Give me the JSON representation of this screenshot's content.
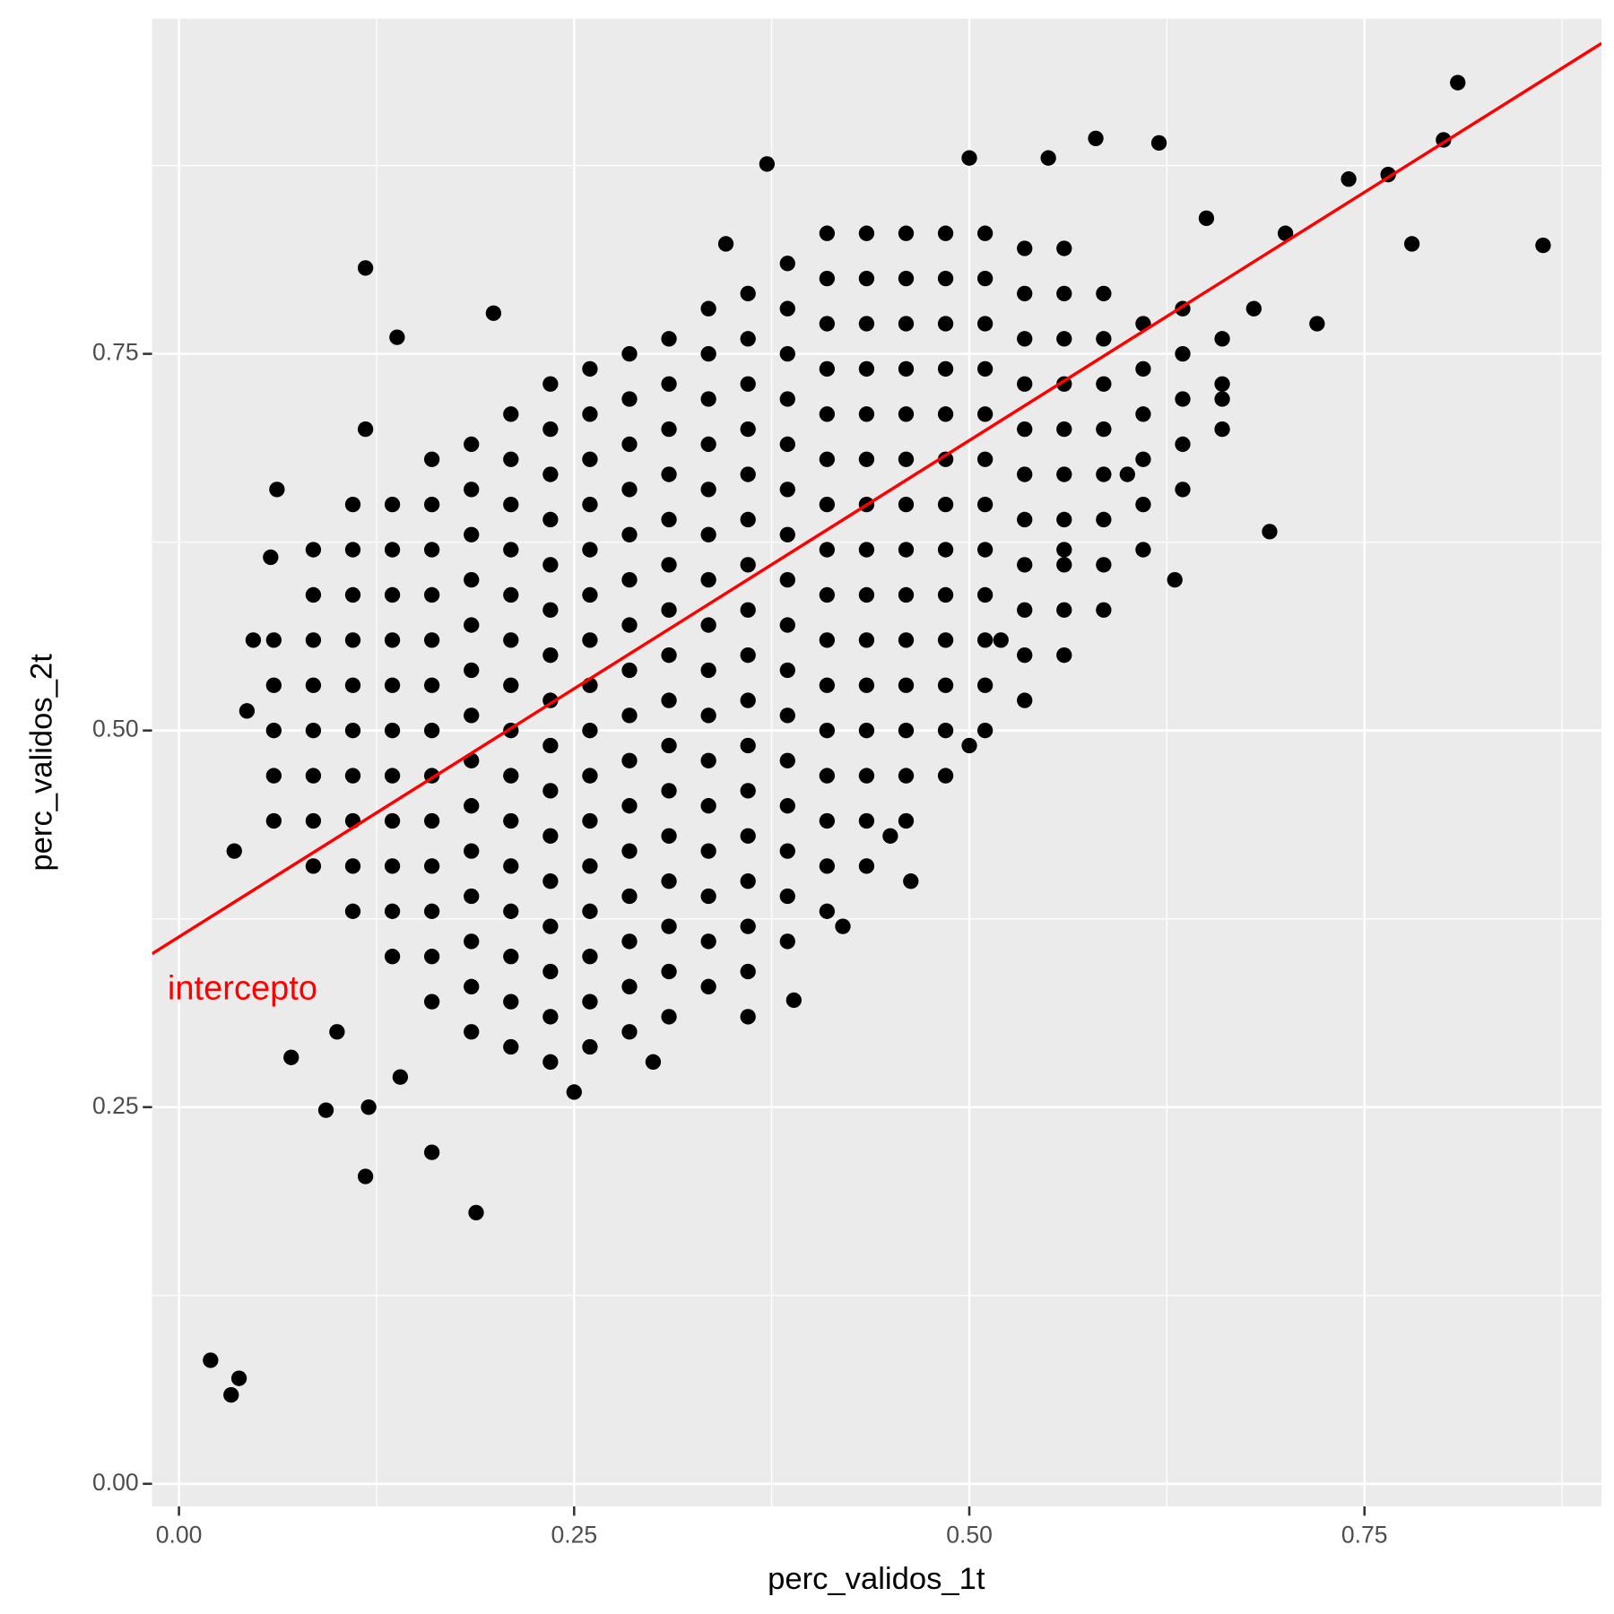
{
  "chart_data": {
    "type": "scatter",
    "x_label": "perc_validos_1t",
    "y_label": "perc_validos_2t",
    "color": "#000000",
    "xlim": [
      -0.017,
      0.9
    ],
    "ylim": [
      -0.015,
      0.9725
    ],
    "xticks": [
      {
        "value": 0,
        "label": "0.00"
      },
      {
        "value": 0.25,
        "label": "0.25"
      },
      {
        "value": 0.5,
        "label": "0.50"
      },
      {
        "value": 0.75,
        "label": "0.75"
      }
    ],
    "yticks": [
      {
        "value": 0,
        "label": "0.00"
      },
      {
        "value": 0.25,
        "label": "0.25"
      },
      {
        "value": 0.5,
        "label": "0.50"
      },
      {
        "value": 0.75,
        "label": "0.75"
      }
    ],
    "x_minor_ticks": [
      0.125,
      0.375,
      0.625,
      0.875
    ],
    "y_minor_ticks": [
      0.125,
      0.375,
      0.625,
      0.875
    ],
    "grid": true,
    "fit_line": {
      "intercept": 0.363,
      "slope": 0.659,
      "color": "#ff0000",
      "label": "intercepto"
    },
    "x": [
      0.06,
      0.06,
      0.06,
      0.06,
      0.06,
      0.085,
      0.085,
      0.085,
      0.085,
      0.085,
      0.085,
      0.085,
      0.085,
      0.11,
      0.11,
      0.11,
      0.11,
      0.11,
      0.11,
      0.11,
      0.11,
      0.11,
      0.11,
      0.135,
      0.135,
      0.135,
      0.135,
      0.135,
      0.135,
      0.135,
      0.135,
      0.135,
      0.135,
      0.135,
      0.16,
      0.16,
      0.16,
      0.16,
      0.16,
      0.16,
      0.16,
      0.16,
      0.16,
      0.16,
      0.16,
      0.16,
      0.16,
      0.185,
      0.185,
      0.185,
      0.185,
      0.185,
      0.185,
      0.185,
      0.185,
      0.185,
      0.185,
      0.185,
      0.185,
      0.185,
      0.185,
      0.21,
      0.21,
      0.21,
      0.21,
      0.21,
      0.21,
      0.21,
      0.21,
      0.21,
      0.21,
      0.21,
      0.21,
      0.21,
      0.21,
      0.21,
      0.235,
      0.235,
      0.235,
      0.235,
      0.235,
      0.235,
      0.235,
      0.235,
      0.235,
      0.235,
      0.235,
      0.235,
      0.235,
      0.235,
      0.235,
      0.235,
      0.26,
      0.26,
      0.26,
      0.26,
      0.26,
      0.26,
      0.26,
      0.26,
      0.26,
      0.26,
      0.26,
      0.26,
      0.26,
      0.26,
      0.26,
      0.26,
      0.285,
      0.285,
      0.285,
      0.285,
      0.285,
      0.285,
      0.285,
      0.285,
      0.285,
      0.285,
      0.285,
      0.285,
      0.285,
      0.285,
      0.285,
      0.285,
      0.31,
      0.31,
      0.31,
      0.31,
      0.31,
      0.31,
      0.31,
      0.31,
      0.31,
      0.31,
      0.31,
      0.31,
      0.31,
      0.31,
      0.31,
      0.31,
      0.335,
      0.335,
      0.335,
      0.335,
      0.335,
      0.335,
      0.335,
      0.335,
      0.335,
      0.335,
      0.335,
      0.335,
      0.335,
      0.335,
      0.335,
      0.335,
      0.36,
      0.36,
      0.36,
      0.36,
      0.36,
      0.36,
      0.36,
      0.36,
      0.36,
      0.36,
      0.36,
      0.36,
      0.36,
      0.36,
      0.36,
      0.36,
      0.385,
      0.385,
      0.385,
      0.385,
      0.385,
      0.385,
      0.385,
      0.385,
      0.385,
      0.385,
      0.385,
      0.385,
      0.385,
      0.385,
      0.385,
      0.385,
      0.41,
      0.41,
      0.41,
      0.41,
      0.41,
      0.41,
      0.41,
      0.41,
      0.41,
      0.41,
      0.41,
      0.41,
      0.41,
      0.41,
      0.41,
      0.41,
      0.435,
      0.435,
      0.435,
      0.435,
      0.435,
      0.435,
      0.435,
      0.435,
      0.435,
      0.435,
      0.435,
      0.435,
      0.435,
      0.435,
      0.435,
      0.46,
      0.46,
      0.46,
      0.46,
      0.46,
      0.46,
      0.46,
      0.46,
      0.46,
      0.46,
      0.46,
      0.46,
      0.46,
      0.46,
      0.485,
      0.485,
      0.485,
      0.485,
      0.485,
      0.485,
      0.485,
      0.485,
      0.485,
      0.485,
      0.485,
      0.485,
      0.485,
      0.51,
      0.51,
      0.51,
      0.51,
      0.51,
      0.51,
      0.51,
      0.51,
      0.51,
      0.51,
      0.51,
      0.51,
      0.535,
      0.535,
      0.535,
      0.535,
      0.535,
      0.535,
      0.535,
      0.535,
      0.535,
      0.535,
      0.535,
      0.56,
      0.56,
      0.56,
      0.56,
      0.56,
      0.56,
      0.56,
      0.56,
      0.56,
      0.56,
      0.585,
      0.585,
      0.585,
      0.585,
      0.585,
      0.585,
      0.585,
      0.585,
      0.61,
      0.61,
      0.61,
      0.61,
      0.61,
      0.61,
      0.635,
      0.635,
      0.635,
      0.635,
      0.635,
      0.66,
      0.66,
      0.66,
      0.02,
      0.038,
      0.033,
      0.188,
      0.118,
      0.071,
      0.093,
      0.118,
      0.138,
      0.199,
      0.809,
      0.863,
      0.69,
      0.8,
      0.78,
      0.74,
      0.765,
      0.58,
      0.62,
      0.346,
      0.372,
      0.463,
      0.389,
      0.118,
      0.058,
      0.062,
      0.047,
      0.043,
      0.035,
      0.72,
      0.7,
      0.68,
      0.65,
      0.55,
      0.5,
      0.63,
      0.66,
      0.6,
      0.56,
      0.52,
      0.5,
      0.45,
      0.12,
      0.16,
      0.14,
      0.1,
      0.25,
      0.3,
      0.36,
      0.42
    ],
    "values": [
      0.44,
      0.47,
      0.5,
      0.53,
      0.56,
      0.41,
      0.44,
      0.47,
      0.5,
      0.53,
      0.56,
      0.59,
      0.62,
      0.38,
      0.41,
      0.44,
      0.47,
      0.5,
      0.53,
      0.56,
      0.59,
      0.62,
      0.65,
      0.35,
      0.38,
      0.41,
      0.44,
      0.47,
      0.5,
      0.53,
      0.56,
      0.59,
      0.62,
      0.65,
      0.32,
      0.35,
      0.38,
      0.41,
      0.44,
      0.47,
      0.5,
      0.53,
      0.56,
      0.59,
      0.62,
      0.65,
      0.68,
      0.3,
      0.33,
      0.36,
      0.39,
      0.42,
      0.45,
      0.48,
      0.51,
      0.54,
      0.57,
      0.6,
      0.63,
      0.66,
      0.69,
      0.29,
      0.32,
      0.35,
      0.38,
      0.41,
      0.44,
      0.47,
      0.5,
      0.53,
      0.56,
      0.59,
      0.62,
      0.65,
      0.68,
      0.71,
      0.28,
      0.31,
      0.34,
      0.37,
      0.4,
      0.43,
      0.46,
      0.49,
      0.52,
      0.55,
      0.58,
      0.61,
      0.64,
      0.67,
      0.7,
      0.73,
      0.29,
      0.32,
      0.35,
      0.38,
      0.41,
      0.44,
      0.47,
      0.5,
      0.53,
      0.56,
      0.59,
      0.62,
      0.65,
      0.68,
      0.71,
      0.74,
      0.3,
      0.33,
      0.36,
      0.39,
      0.42,
      0.45,
      0.48,
      0.51,
      0.54,
      0.57,
      0.6,
      0.63,
      0.66,
      0.69,
      0.72,
      0.75,
      0.31,
      0.34,
      0.37,
      0.4,
      0.43,
      0.46,
      0.49,
      0.52,
      0.55,
      0.58,
      0.61,
      0.64,
      0.67,
      0.7,
      0.73,
      0.76,
      0.33,
      0.36,
      0.39,
      0.42,
      0.45,
      0.48,
      0.51,
      0.54,
      0.57,
      0.6,
      0.63,
      0.66,
      0.69,
      0.72,
      0.75,
      0.78,
      0.34,
      0.37,
      0.4,
      0.43,
      0.46,
      0.49,
      0.52,
      0.55,
      0.58,
      0.61,
      0.64,
      0.67,
      0.7,
      0.73,
      0.76,
      0.79,
      0.36,
      0.39,
      0.42,
      0.45,
      0.48,
      0.51,
      0.54,
      0.57,
      0.6,
      0.63,
      0.66,
      0.69,
      0.72,
      0.75,
      0.78,
      0.81,
      0.38,
      0.41,
      0.44,
      0.47,
      0.5,
      0.53,
      0.56,
      0.59,
      0.62,
      0.65,
      0.68,
      0.71,
      0.74,
      0.77,
      0.8,
      0.83,
      0.41,
      0.44,
      0.47,
      0.5,
      0.53,
      0.56,
      0.59,
      0.62,
      0.65,
      0.68,
      0.71,
      0.74,
      0.77,
      0.8,
      0.83,
      0.44,
      0.47,
      0.5,
      0.53,
      0.56,
      0.59,
      0.62,
      0.65,
      0.68,
      0.71,
      0.74,
      0.77,
      0.8,
      0.83,
      0.47,
      0.5,
      0.53,
      0.56,
      0.59,
      0.62,
      0.65,
      0.68,
      0.71,
      0.74,
      0.77,
      0.8,
      0.83,
      0.5,
      0.53,
      0.56,
      0.59,
      0.62,
      0.65,
      0.68,
      0.71,
      0.74,
      0.77,
      0.8,
      0.83,
      0.52,
      0.55,
      0.58,
      0.61,
      0.64,
      0.67,
      0.7,
      0.73,
      0.76,
      0.79,
      0.82,
      0.55,
      0.58,
      0.61,
      0.64,
      0.67,
      0.7,
      0.73,
      0.76,
      0.79,
      0.82,
      0.58,
      0.61,
      0.64,
      0.67,
      0.7,
      0.73,
      0.76,
      0.79,
      0.62,
      0.65,
      0.68,
      0.71,
      0.74,
      0.77,
      0.66,
      0.69,
      0.72,
      0.75,
      0.78,
      0.7,
      0.73,
      0.76,
      0.082,
      0.07,
      0.059,
      0.18,
      0.204,
      0.283,
      0.248,
      0.807,
      0.761,
      0.777,
      0.93,
      0.822,
      0.632,
      0.892,
      0.823,
      0.866,
      0.869,
      0.893,
      0.89,
      0.823,
      0.876,
      0.4,
      0.321,
      0.7,
      0.615,
      0.66,
      0.56,
      0.513,
      0.42,
      0.77,
      0.83,
      0.78,
      0.84,
      0.88,
      0.88,
      0.6,
      0.72,
      0.67,
      0.62,
      0.56,
      0.49,
      0.43,
      0.25,
      0.22,
      0.27,
      0.3,
      0.26,
      0.28,
      0.31,
      0.37
    ]
  }
}
